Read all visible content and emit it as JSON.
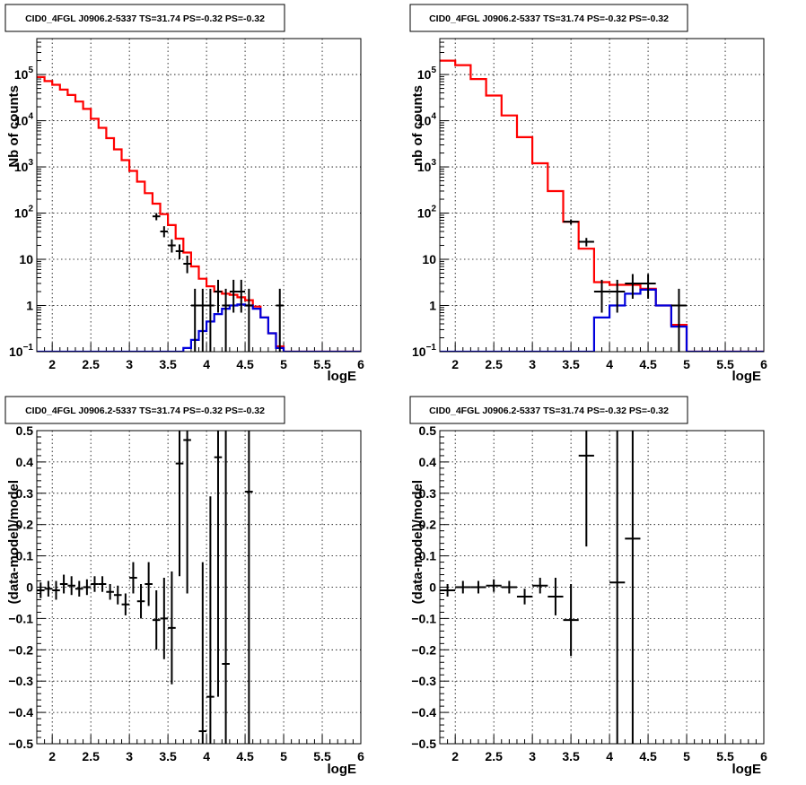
{
  "chart_data": [
    {
      "type": "step-histogram-with-errorbars",
      "title": "CID0_4FGL J0906.2-5337 TS=31.74 PS=-0.32 PS=-0.32",
      "xlabel": "logE",
      "ylabel": "Nb of counts",
      "xlim": [
        1.8,
        6.0
      ],
      "ylim": [
        0.1,
        600000
      ],
      "yscale": "log",
      "grid": true,
      "xticks": [
        "2",
        "2.5",
        "3",
        "3.5",
        "4",
        "4.5",
        "5",
        "5.5",
        "6"
      ],
      "yticks": [
        {
          "value": 0.1,
          "base": "10",
          "exp": "−1"
        },
        {
          "value": 1,
          "label": "1"
        },
        {
          "value": 10,
          "label": "10"
        },
        {
          "value": 100,
          "base": "10",
          "exp": "2"
        },
        {
          "value": 1000,
          "base": "10",
          "exp": "3"
        },
        {
          "value": 10000,
          "base": "10",
          "exp": "4"
        },
        {
          "value": 100000,
          "base": "10",
          "exp": "5"
        }
      ],
      "bin_edges": [
        1.8,
        1.9,
        2.0,
        2.1,
        2.2,
        2.3,
        2.4,
        2.5,
        2.6,
        2.7,
        2.8,
        2.9,
        3.0,
        3.1,
        3.2,
        3.3,
        3.4,
        3.5,
        3.6,
        3.7,
        3.8,
        3.9,
        4.0,
        4.1,
        4.2,
        4.3,
        4.4,
        4.5,
        4.6,
        4.7,
        4.8,
        4.9,
        5.0,
        5.1,
        5.2,
        5.3,
        5.4,
        5.5,
        5.6,
        5.7,
        5.8,
        5.9,
        6.0
      ],
      "series": [
        {
          "name": "",
          "color": "#ff0000",
          "kind": "step",
          "values": [
            88000,
            72000,
            60000,
            47000,
            36000,
            26000,
            18000,
            11000,
            7000,
            4200,
            2400,
            1400,
            820,
            480,
            270,
            160,
            95,
            55,
            28,
            14,
            7,
            3.8,
            2.6,
            2.0,
            1.8,
            1.7,
            1.5,
            1.3,
            0.95,
            0.55,
            0.25,
            0.13,
            0.1,
            0.1,
            0.1,
            0.1,
            0.1,
            0.1,
            0.1,
            0.1,
            0.1,
            0.1
          ]
        },
        {
          "name": "",
          "color": "#0000dd",
          "kind": "step",
          "values": [
            0.1,
            0.1,
            0.1,
            0.1,
            0.1,
            0.1,
            0.1,
            0.1,
            0.1,
            0.1,
            0.1,
            0.1,
            0.1,
            0.1,
            0.1,
            0.1,
            0.1,
            0.1,
            0.1,
            0.12,
            0.18,
            0.28,
            0.45,
            0.65,
            0.85,
            1.0,
            1.05,
            1.0,
            0.85,
            0.55,
            0.25,
            0.12,
            0.1,
            0.1,
            0.1,
            0.1,
            0.1,
            0.1,
            0.1,
            0.1,
            0.1,
            0.1
          ]
        },
        {
          "name": "",
          "color": "#000000",
          "kind": "points",
          "points": [
            {
              "x": 3.35,
              "y": 85,
              "lo": 70,
              "hi": 100
            },
            {
              "x": 3.45,
              "y": 40,
              "lo": 30,
              "hi": 52
            },
            {
              "x": 3.55,
              "y": 20,
              "lo": 14,
              "hi": 27
            },
            {
              "x": 3.65,
              "y": 15,
              "lo": 10,
              "hi": 21
            },
            {
              "x": 3.75,
              "y": 8,
              "lo": 5,
              "hi": 12
            },
            {
              "x": 3.85,
              "y": 1,
              "lo": 0.1,
              "hi": 2.3
            },
            {
              "x": 3.95,
              "y": 1,
              "lo": 0.1,
              "hi": 2.3
            },
            {
              "x": 4.05,
              "y": 1,
              "lo": 0.1,
              "hi": 2.3
            },
            {
              "x": 4.15,
              "y": 2,
              "lo": 0.7,
              "hi": 3.6
            },
            {
              "x": 4.25,
              "y": 1,
              "lo": 0.1,
              "hi": 2.3
            },
            {
              "x": 4.35,
              "y": 2,
              "lo": 0.7,
              "hi": 3.6
            },
            {
              "x": 4.45,
              "y": 2,
              "lo": 0.7,
              "hi": 3.6
            },
            {
              "x": 4.55,
              "y": 1,
              "lo": 0.1,
              "hi": 2.3
            },
            {
              "x": 4.95,
              "y": 1,
              "lo": 0.1,
              "hi": 2.3
            }
          ]
        }
      ]
    },
    {
      "type": "step-histogram-with-errorbars",
      "title": "CID0_4FGL J0906.2-5337 TS=31.74 PS=-0.32 PS=-0.32",
      "xlabel": "logE",
      "ylabel": "nb of counts",
      "xlim": [
        1.8,
        6.0
      ],
      "ylim": [
        0.1,
        600000
      ],
      "yscale": "log",
      "grid": true,
      "xticks": [
        "2",
        "2.5",
        "3",
        "3.5",
        "4",
        "4.5",
        "5",
        "5.5",
        "6"
      ],
      "yticks": [
        {
          "value": 0.1,
          "base": "10",
          "exp": "−1"
        },
        {
          "value": 1,
          "label": "1"
        },
        {
          "value": 10,
          "label": "10"
        },
        {
          "value": 100,
          "base": "10",
          "exp": "2"
        },
        {
          "value": 1000,
          "base": "10",
          "exp": "3"
        },
        {
          "value": 10000,
          "base": "10",
          "exp": "4"
        },
        {
          "value": 100000,
          "base": "10",
          "exp": "5"
        }
      ],
      "bin_edges": [
        1.8,
        2.0,
        2.2,
        2.4,
        2.6,
        2.8,
        3.0,
        3.2,
        3.4,
        3.6,
        3.8,
        4.0,
        4.2,
        4.4,
        4.6,
        4.8,
        5.0,
        5.2,
        5.4,
        5.6,
        5.8,
        6.0
      ],
      "series": [
        {
          "name": "",
          "color": "#ff0000",
          "kind": "step",
          "values": [
            200000,
            160000,
            80000,
            35000,
            13000,
            4400,
            1200,
            300,
            65,
            17,
            3.2,
            2.8,
            2.8,
            2.3,
            1.0,
            0.38,
            0.1,
            0.1,
            0.1,
            0.1,
            0.1
          ]
        },
        {
          "name": "",
          "color": "#0000dd",
          "kind": "step",
          "values": [
            0.1,
            0.1,
            0.1,
            0.1,
            0.1,
            0.1,
            0.1,
            0.1,
            0.1,
            0.1,
            0.55,
            1.0,
            1.8,
            2.2,
            1.0,
            0.35,
            0.1,
            0.1,
            0.1,
            0.1,
            0.1
          ]
        },
        {
          "name": "",
          "color": "#000000",
          "kind": "points",
          "points": [
            {
              "x": 3.5,
              "y": 65,
              "lo": 57,
              "hi": 73
            },
            {
              "x": 3.7,
              "y": 24,
              "lo": 19,
              "hi": 29
            },
            {
              "x": 3.9,
              "y": 2,
              "lo": 0.7,
              "hi": 3.6
            },
            {
              "x": 4.1,
              "y": 2,
              "lo": 0.7,
              "hi": 3.6
            },
            {
              "x": 4.3,
              "y": 3,
              "lo": 1.4,
              "hi": 4.8
            },
            {
              "x": 4.5,
              "y": 3,
              "lo": 1.4,
              "hi": 4.8
            },
            {
              "x": 4.9,
              "y": 1,
              "lo": 0.1,
              "hi": 2.3
            }
          ]
        }
      ]
    },
    {
      "type": "scatter-errorbars",
      "title": "CID0_4FGL J0906.2-5337 TS=31.74 PS=-0.32 PS=-0.32",
      "xlabel": "logE",
      "ylabel": "(data-model)/model",
      "xlim": [
        1.8,
        6.0
      ],
      "ylim": [
        -0.5,
        0.5
      ],
      "yscale": "linear",
      "grid": true,
      "xticks": [
        "2",
        "2.5",
        "3",
        "3.5",
        "4",
        "4.5",
        "5",
        "5.5",
        "6"
      ],
      "yticks": [
        "−0.5",
        "−0.4",
        "−0.3",
        "−0.2",
        "−0.1",
        "0",
        "0.1",
        "0.2",
        "0.3",
        "0.4",
        "0.5"
      ],
      "series": [
        {
          "name": "",
          "color": "#000000",
          "kind": "points",
          "xerr": 0.05,
          "points": [
            {
              "x": 1.85,
              "y": -0.01,
              "lo": -0.035,
              "hi": 0.015
            },
            {
              "x": 1.95,
              "y": -0.005,
              "lo": -0.03,
              "hi": 0.02
            },
            {
              "x": 2.05,
              "y": -0.01,
              "lo": -0.04,
              "hi": 0.02
            },
            {
              "x": 2.15,
              "y": 0.01,
              "lo": -0.02,
              "hi": 0.04
            },
            {
              "x": 2.25,
              "y": 0.005,
              "lo": -0.025,
              "hi": 0.035
            },
            {
              "x": 2.35,
              "y": -0.005,
              "lo": -0.03,
              "hi": 0.02
            },
            {
              "x": 2.45,
              "y": 0.0,
              "lo": -0.025,
              "hi": 0.025
            },
            {
              "x": 2.55,
              "y": 0.01,
              "lo": -0.015,
              "hi": 0.035
            },
            {
              "x": 2.65,
              "y": 0.01,
              "lo": -0.015,
              "hi": 0.035
            },
            {
              "x": 2.75,
              "y": -0.015,
              "lo": -0.04,
              "hi": 0.01
            },
            {
              "x": 2.85,
              "y": -0.025,
              "lo": -0.055,
              "hi": 0.005
            },
            {
              "x": 2.95,
              "y": -0.055,
              "lo": -0.09,
              "hi": -0.02
            },
            {
              "x": 3.05,
              "y": 0.03,
              "lo": -0.02,
              "hi": 0.08
            },
            {
              "x": 3.15,
              "y": -0.045,
              "lo": -0.1,
              "hi": 0.01
            },
            {
              "x": 3.25,
              "y": 0.01,
              "lo": -0.06,
              "hi": 0.08
            },
            {
              "x": 3.35,
              "y": -0.105,
              "lo": -0.2,
              "hi": -0.01
            },
            {
              "x": 3.45,
              "y": -0.1,
              "lo": -0.23,
              "hi": 0.03
            },
            {
              "x": 3.55,
              "y": -0.13,
              "lo": -0.31,
              "hi": 0.05
            },
            {
              "x": 3.65,
              "y": 0.395,
              "lo": 0.035,
              "hi": 0.76
            },
            {
              "x": 3.75,
              "y": 0.47,
              "lo": -0.02,
              "hi": 0.95
            },
            {
              "x": 3.95,
              "y": -0.46,
              "lo": -1.0,
              "hi": 0.08
            },
            {
              "x": 4.05,
              "y": -0.35,
              "lo": -1.0,
              "hi": 0.29
            },
            {
              "x": 4.15,
              "y": 0.415,
              "lo": -0.35,
              "hi": 1.2
            },
            {
              "x": 4.25,
              "y": -0.245,
              "lo": -1.0,
              "hi": 0.52
            },
            {
              "x": 4.55,
              "y": 0.305,
              "lo": -1.0,
              "hi": 1.6
            }
          ]
        }
      ]
    },
    {
      "type": "scatter-errorbars",
      "title": "CID0_4FGL J0906.2-5337 TS=31.74 PS=-0.32 PS=-0.32",
      "xlabel": "logE",
      "ylabel": "(data-model)/model",
      "xlim": [
        1.8,
        6.0
      ],
      "ylim": [
        -0.5,
        0.5
      ],
      "yscale": "linear",
      "grid": true,
      "xticks": [
        "2",
        "2.5",
        "3",
        "3.5",
        "4",
        "4.5",
        "5",
        "5.5",
        "6"
      ],
      "yticks": [
        "−0.5",
        "−0.4",
        "−0.3",
        "−0.2",
        "−0.1",
        "0",
        "0.1",
        "0.2",
        "0.3",
        "0.4",
        "0.5"
      ],
      "series": [
        {
          "name": "",
          "color": "#000000",
          "kind": "points",
          "xerr": 0.1,
          "points": [
            {
              "x": 1.9,
              "y": -0.01,
              "lo": -0.03,
              "hi": 0.01
            },
            {
              "x": 2.1,
              "y": 0.0,
              "lo": -0.02,
              "hi": 0.02
            },
            {
              "x": 2.3,
              "y": 0.0,
              "lo": -0.02,
              "hi": 0.02
            },
            {
              "x": 2.5,
              "y": 0.005,
              "lo": -0.015,
              "hi": 0.025
            },
            {
              "x": 2.7,
              "y": 0.0,
              "lo": -0.02,
              "hi": 0.02
            },
            {
              "x": 2.9,
              "y": -0.03,
              "lo": -0.055,
              "hi": -0.005
            },
            {
              "x": 3.1,
              "y": 0.005,
              "lo": -0.02,
              "hi": 0.03
            },
            {
              "x": 3.3,
              "y": -0.03,
              "lo": -0.09,
              "hi": 0.03
            },
            {
              "x": 3.5,
              "y": -0.105,
              "lo": -0.22,
              "hi": 0.01
            },
            {
              "x": 3.7,
              "y": 0.42,
              "lo": 0.13,
              "hi": 0.72
            },
            {
              "x": 4.1,
              "y": 0.015,
              "lo": -1.0,
              "hi": 1.0
            },
            {
              "x": 4.3,
              "y": 0.155,
              "lo": -1.0,
              "hi": 1.3
            }
          ]
        }
      ]
    }
  ]
}
